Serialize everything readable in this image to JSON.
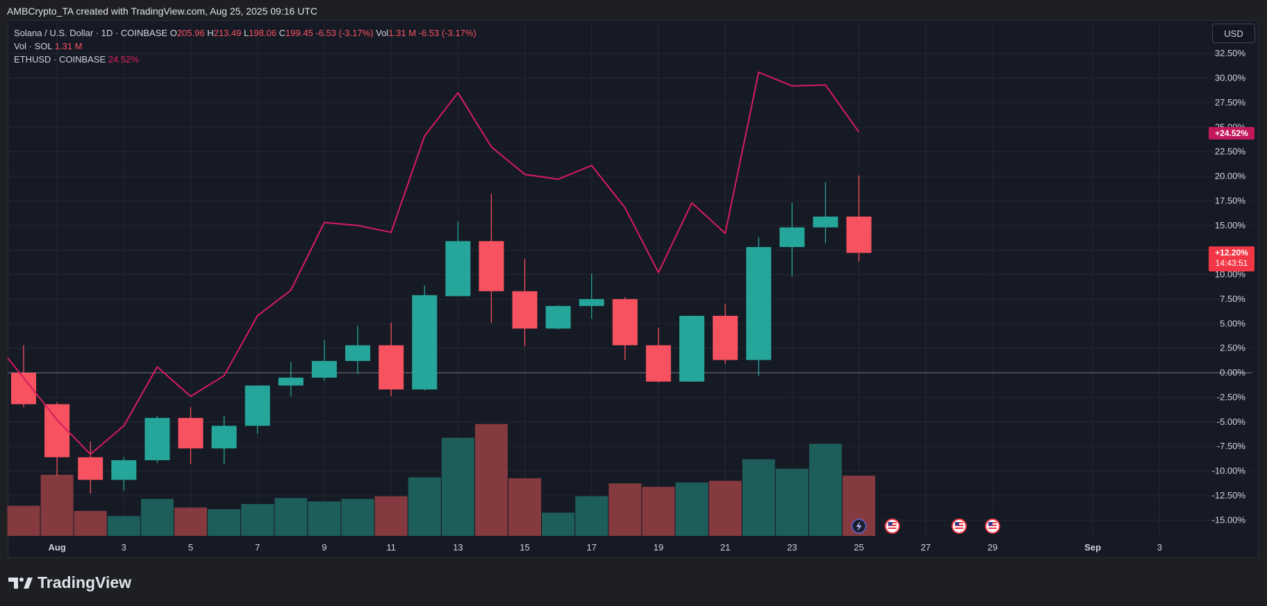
{
  "header": {
    "author_line": "AMBCrypto_TA created with TradingView.com, Aug 25, 2025 09:16 UTC"
  },
  "legend": {
    "symbol": "Solana / U.S. Dollar · 1D · COINBASE",
    "o_label": "O",
    "o_value": "205.96",
    "h_label": "H",
    "h_value": "213.49",
    "l_label": "L",
    "l_value": "198.06",
    "c_label": "C",
    "c_value": "199.45",
    "change": "-6.53 (-3.17%)",
    "vol_label": "Vol",
    "vol_value": "1.31 M",
    "vol_change": "-6.53 (-3.17%)",
    "vol_series": "Vol · SOL",
    "vol_series_value": "1.31 M",
    "compare_series": "ETHUSD · COINBASE",
    "compare_value": "24.52%"
  },
  "toolbar": {
    "currency": "USD"
  },
  "price_tags": {
    "eth_tag": "+24.52%",
    "sol_tag": "+12.20%",
    "sol_countdown": "14:43:51"
  },
  "footer": {
    "brand": "TradingView"
  },
  "colors": {
    "up": "#26a69a",
    "down": "#f7525f",
    "vol_up": "#1e5e5a",
    "vol_down": "#843a3e",
    "compare_line": "#d81b60",
    "background": "#161a25",
    "grid": "#232834"
  },
  "chart_data": {
    "type": "candlestick",
    "y_unit": "percent change",
    "ylim": [
      -16.2,
      34.5
    ],
    "y_ticks": [
      32.5,
      30,
      27.5,
      25,
      22.5,
      20,
      17.5,
      15,
      12.5,
      10,
      7.5,
      5,
      2.5,
      0,
      -2.5,
      -5,
      -7.5,
      -10,
      -12.5,
      -15
    ],
    "y_tick_labels": [
      "32.50%",
      "30.00%",
      "27.50%",
      "25.00%",
      "22.50%",
      "20.00%",
      "17.50%",
      "15.00%",
      "12.50%",
      "10.00%",
      "7.50%",
      "5.00%",
      "2.50%",
      "0.00%",
      "-2.50%",
      "-5.00%",
      "-7.50%",
      "-10.00%",
      "-12.50%",
      "-15.00%"
    ],
    "x_ticks": [
      {
        "label": "Aug",
        "day": 1
      },
      {
        "label": "3",
        "day": 3
      },
      {
        "label": "5",
        "day": 5
      },
      {
        "label": "7",
        "day": 7
      },
      {
        "label": "9",
        "day": 9
      },
      {
        "label": "11",
        "day": 11
      },
      {
        "label": "13",
        "day": 13
      },
      {
        "label": "15",
        "day": 15
      },
      {
        "label": "17",
        "day": 17
      },
      {
        "label": "19",
        "day": 19
      },
      {
        "label": "21",
        "day": 21
      },
      {
        "label": "23",
        "day": 23
      },
      {
        "label": "25",
        "day": 25
      },
      {
        "label": "27",
        "day": 27
      },
      {
        "label": "29",
        "day": 29
      },
      {
        "label": "Sep",
        "day": 32
      },
      {
        "label": "3",
        "day": 34
      }
    ],
    "candles": [
      {
        "day": 31,
        "o": 0.0,
        "h": 2.8,
        "l": -3.5,
        "c": -3.2
      },
      {
        "day": 1,
        "o": -3.2,
        "h": -3.0,
        "l": -10.5,
        "c": -8.6
      },
      {
        "day": 2,
        "o": -8.6,
        "h": -7.0,
        "l": -12.3,
        "c": -10.9
      },
      {
        "day": 3,
        "o": -10.9,
        "h": -8.6,
        "l": -12.0,
        "c": -8.9
      },
      {
        "day": 4,
        "o": -8.9,
        "h": -4.4,
        "l": -9.2,
        "c": -4.6
      },
      {
        "day": 5,
        "o": -4.6,
        "h": -3.5,
        "l": -9.3,
        "c": -7.7
      },
      {
        "day": 6,
        "o": -7.7,
        "h": -4.4,
        "l": -9.3,
        "c": -5.4
      },
      {
        "day": 7,
        "o": -5.4,
        "h": -1.3,
        "l": -6.2,
        "c": -1.3
      },
      {
        "day": 8,
        "o": -1.3,
        "h": 1.1,
        "l": -2.4,
        "c": -0.5
      },
      {
        "day": 9,
        "o": -0.5,
        "h": 3.3,
        "l": -0.8,
        "c": 1.2
      },
      {
        "day": 10,
        "o": 1.2,
        "h": 4.8,
        "l": -0.1,
        "c": 2.8
      },
      {
        "day": 11,
        "o": 2.8,
        "h": 5.1,
        "l": -2.4,
        "c": -1.7
      },
      {
        "day": 12,
        "o": -1.7,
        "h": 8.9,
        "l": -1.8,
        "c": 7.9
      },
      {
        "day": 13,
        "o": 7.8,
        "h": 15.4,
        "l": 7.8,
        "c": 13.4
      },
      {
        "day": 14,
        "o": 13.4,
        "h": 18.2,
        "l": 5.1,
        "c": 8.3
      },
      {
        "day": 15,
        "o": 8.3,
        "h": 11.6,
        "l": 2.7,
        "c": 4.5
      },
      {
        "day": 16,
        "o": 4.5,
        "h": 6.9,
        "l": 4.4,
        "c": 6.8
      },
      {
        "day": 17,
        "o": 6.8,
        "h": 10.1,
        "l": 5.5,
        "c": 7.5
      },
      {
        "day": 18,
        "o": 7.5,
        "h": 7.7,
        "l": 1.3,
        "c": 2.8
      },
      {
        "day": 19,
        "o": 2.8,
        "h": 4.6,
        "l": -1.0,
        "c": -0.9
      },
      {
        "day": 20,
        "o": -0.9,
        "h": 5.8,
        "l": -0.9,
        "c": 5.8
      },
      {
        "day": 21,
        "o": 5.8,
        "h": 7.0,
        "l": 0.9,
        "c": 1.3
      },
      {
        "day": 22,
        "o": 1.3,
        "h": 13.8,
        "l": -0.3,
        "c": 12.8
      },
      {
        "day": 23,
        "o": 12.8,
        "h": 17.3,
        "l": 9.8,
        "c": 14.8
      },
      {
        "day": 24,
        "o": 14.8,
        "h": 19.4,
        "l": 13.2,
        "c": 15.9
      },
      {
        "day": 25,
        "o": 15.9,
        "h": 20.1,
        "l": 11.3,
        "c": 12.2
      }
    ],
    "volume": [
      {
        "day": 31,
        "v": 35,
        "dir": "down"
      },
      {
        "day": 1,
        "v": 71,
        "dir": "down"
      },
      {
        "day": 2,
        "v": 29,
        "dir": "down"
      },
      {
        "day": 3,
        "v": 23,
        "dir": "up"
      },
      {
        "day": 4,
        "v": 43,
        "dir": "up"
      },
      {
        "day": 5,
        "v": 33,
        "dir": "down"
      },
      {
        "day": 6,
        "v": 31,
        "dir": "up"
      },
      {
        "day": 7,
        "v": 37,
        "dir": "up"
      },
      {
        "day": 8,
        "v": 44,
        "dir": "up"
      },
      {
        "day": 9,
        "v": 40,
        "dir": "up"
      },
      {
        "day": 10,
        "v": 43,
        "dir": "up"
      },
      {
        "day": 11,
        "v": 46,
        "dir": "down"
      },
      {
        "day": 12,
        "v": 68,
        "dir": "up"
      },
      {
        "day": 13,
        "v": 114,
        "dir": "up"
      },
      {
        "day": 14,
        "v": 130,
        "dir": "down"
      },
      {
        "day": 15,
        "v": 67,
        "dir": "down"
      },
      {
        "day": 16,
        "v": 27,
        "dir": "up"
      },
      {
        "day": 17,
        "v": 46,
        "dir": "up"
      },
      {
        "day": 18,
        "v": 61,
        "dir": "down"
      },
      {
        "day": 19,
        "v": 57,
        "dir": "down"
      },
      {
        "day": 20,
        "v": 62,
        "dir": "up"
      },
      {
        "day": 21,
        "v": 64,
        "dir": "down"
      },
      {
        "day": 22,
        "v": 89,
        "dir": "up"
      },
      {
        "day": 23,
        "v": 78,
        "dir": "up"
      },
      {
        "day": 24,
        "v": 107,
        "dir": "up"
      },
      {
        "day": 25,
        "v": 70,
        "dir": "down"
      }
    ],
    "compare_line": {
      "name": "ETHUSD",
      "points": [
        {
          "day": 30,
          "v": 1.5
        },
        {
          "day": 31,
          "v": -0.5
        },
        {
          "day": 1,
          "v": -4.8
        },
        {
          "day": 2,
          "v": -8.3
        },
        {
          "day": 3,
          "v": -5.4
        },
        {
          "day": 4,
          "v": 0.6
        },
        {
          "day": 5,
          "v": -2.4
        },
        {
          "day": 6,
          "v": -0.3
        },
        {
          "day": 7,
          "v": 5.8
        },
        {
          "day": 8,
          "v": 8.4
        },
        {
          "day": 9,
          "v": 15.3
        },
        {
          "day": 10,
          "v": 15.0
        },
        {
          "day": 11,
          "v": 14.3
        },
        {
          "day": 12,
          "v": 24.1
        },
        {
          "day": 13,
          "v": 28.5
        },
        {
          "day": 14,
          "v": 23.0
        },
        {
          "day": 15,
          "v": 20.2
        },
        {
          "day": 16,
          "v": 19.7
        },
        {
          "day": 17,
          "v": 21.1
        },
        {
          "day": 18,
          "v": 16.8
        },
        {
          "day": 19,
          "v": 10.2
        },
        {
          "day": 20,
          "v": 17.3
        },
        {
          "day": 21,
          "v": 14.2
        },
        {
          "day": 22,
          "v": 30.6
        },
        {
          "day": 23,
          "v": 29.2
        },
        {
          "day": 24,
          "v": 29.3
        },
        {
          "day": 25,
          "v": 24.5
        }
      ]
    },
    "event_markers": [
      {
        "day": 25,
        "kind": "earnings-flash"
      },
      {
        "day": 26,
        "kind": "us-economic-event"
      },
      {
        "day": 28,
        "kind": "us-economic-event"
      },
      {
        "day": 29,
        "kind": "us-economic-event"
      }
    ]
  }
}
